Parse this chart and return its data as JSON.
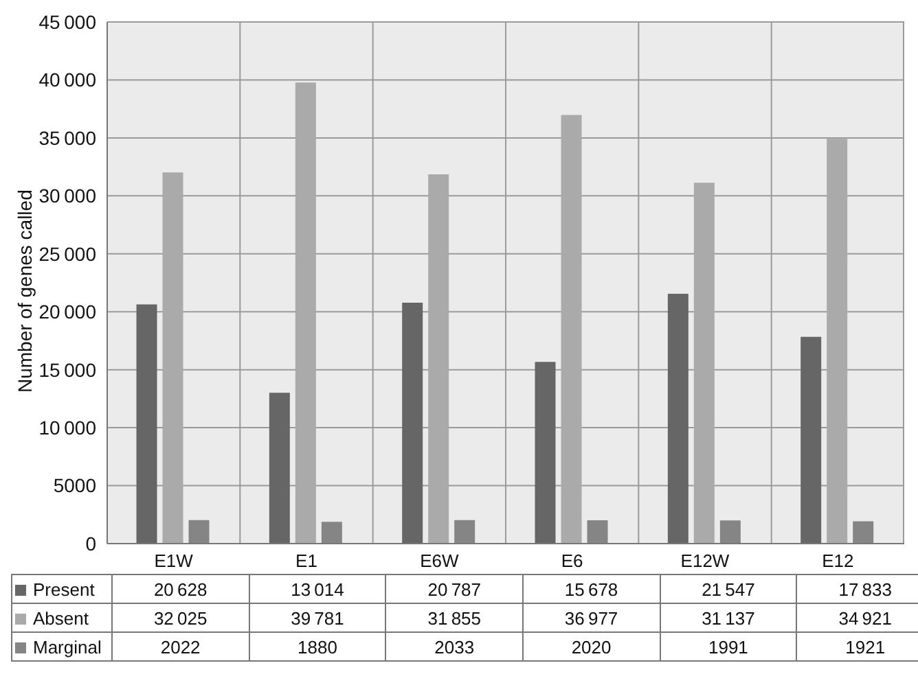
{
  "chart_data": {
    "type": "bar",
    "ylabel": "Number of genes called",
    "categories": [
      "E1W",
      "E1",
      "E6W",
      "E6",
      "E12W",
      "E12"
    ],
    "series": [
      {
        "name": "Present",
        "color": "#666666",
        "values": [
          20628,
          13014,
          20787,
          15678,
          21547,
          17833
        ]
      },
      {
        "name": "Absent",
        "color": "#aaaaaa",
        "values": [
          32025,
          39781,
          31855,
          36977,
          31137,
          34921
        ]
      },
      {
        "name": "Marginal",
        "color": "#858585",
        "values": [
          2022,
          1880,
          2033,
          2020,
          1991,
          1921
        ]
      }
    ],
    "ylim": [
      0,
      45000
    ],
    "yticks": [
      0,
      5000,
      10000,
      15000,
      20000,
      25000,
      30000,
      35000,
      40000,
      45000
    ],
    "grid": true,
    "legend": "bottom",
    "data_labels": true
  }
}
